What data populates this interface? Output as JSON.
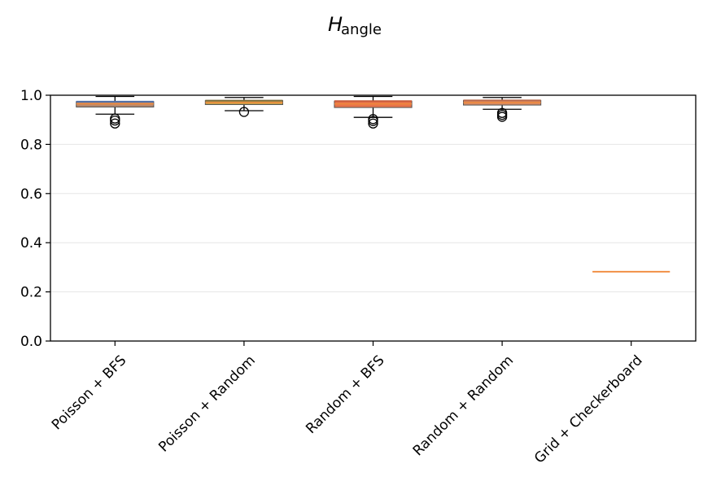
{
  "chart_data": {
    "type": "box",
    "title": {
      "main": "H",
      "subscript": "angle"
    },
    "xlabel": "",
    "ylabel": "",
    "ylim": [
      0.0,
      1.0
    ],
    "yticks": [
      "0.0",
      "0.2",
      "0.4",
      "0.6",
      "0.8",
      "1.0"
    ],
    "grid": "horizontal",
    "categories": [
      "Poisson + BFS",
      "Poisson + Random",
      "Random + BFS",
      "Random + Random",
      "Grid + Checkerboard"
    ],
    "boxes": [
      {
        "q1": 0.952,
        "median": 0.965,
        "q3": 0.974,
        "whisker_low": 0.923,
        "whisker_high": 0.995,
        "outliers": [
          0.905,
          0.897,
          0.885
        ]
      },
      {
        "q1": 0.962,
        "median": 0.97,
        "q3": 0.978,
        "whisker_low": 0.937,
        "whisker_high": 0.991,
        "outliers": [
          0.932
        ]
      },
      {
        "q1": 0.95,
        "median": 0.965,
        "q3": 0.976,
        "whisker_low": 0.91,
        "whisker_high": 0.995,
        "outliers": [
          0.903,
          0.895,
          0.885
        ]
      },
      {
        "q1": 0.96,
        "median": 0.97,
        "q3": 0.979,
        "whisker_low": 0.943,
        "whisker_high": 0.991,
        "outliers": [
          0.928,
          0.92,
          0.912
        ]
      },
      {
        "q1": 0.282,
        "median": 0.282,
        "q3": 0.282,
        "whisker_low": 0.282,
        "whisker_high": 0.282,
        "outliers": []
      }
    ],
    "colors": {
      "boxes": [
        "#b8896e",
        "#c9a54a",
        "#e8744a",
        "#d98b63",
        "#f08a3c"
      ],
      "box_top_edges": [
        "#4f6fa8",
        "#7a6a3e",
        "#c85a3a",
        "#b9694a",
        "#f08a3c"
      ],
      "median": "#f08a3c",
      "axis": "#000000",
      "grid": "#e6e6e6"
    }
  }
}
